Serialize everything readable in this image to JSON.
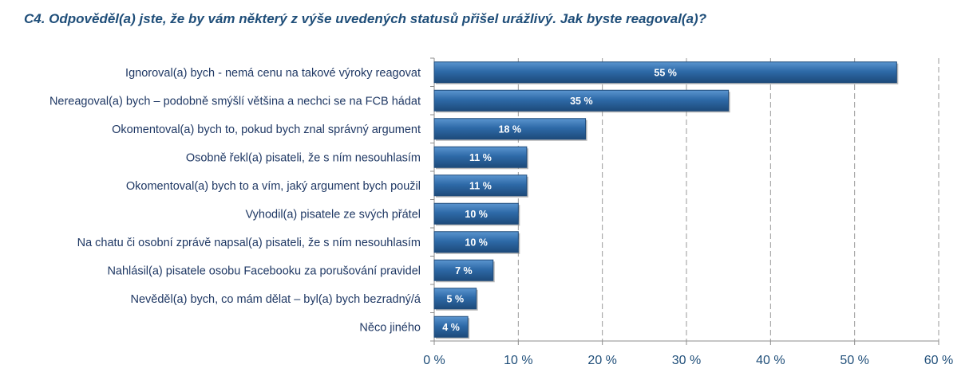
{
  "chart_data": {
    "type": "bar",
    "orientation": "horizontal",
    "title": "C4. Odpověděl(a) jste, že by vám některý z výše uvedených statusů přišel urážlivý. Jak byste reagoval(a)?",
    "categories": [
      "Ignoroval(a) bych - nemá cenu na takové výroky reagovat",
      "Nereagoval(a) bych – podobně smýšlí většina a nechci se na FCB hádat",
      "Okomentoval(a) bych to, pokud bych znal správný argument",
      "Osobně řekl(a) pisateli, že s ním nesouhlasím",
      "Okomentoval(a) bych to a vím, jaký argument bych použil",
      "Vyhodil(a) pisatele ze svých přátel",
      "Na chatu či osobní zprávě napsal(a) pisateli, že s ním nesouhlasím",
      "Nahlásil(a) pisatele osobu Facebooku za porušování pravidel",
      "Nevěděl(a) bych, co mám dělat – byl(a) bych bezradný/á",
      "Něco jiného"
    ],
    "values": [
      55,
      35,
      18,
      11,
      11,
      10,
      10,
      7,
      5,
      4
    ],
    "data_labels": [
      "55 %",
      "35 %",
      "18 %",
      "11 %",
      "11 %",
      "10 %",
      "10 %",
      "7 %",
      "5 %",
      "4 %"
    ],
    "xlim": [
      0,
      60
    ],
    "x_ticks": [
      0,
      10,
      20,
      30,
      40,
      50,
      60
    ],
    "x_tick_labels": [
      "0 %",
      "10 %",
      "20 %",
      "30 %",
      "40 %",
      "50 %",
      "60 %"
    ],
    "grid": "vertical dashed",
    "legend": "none",
    "colors": {
      "bar": "#2e6aa8",
      "bar_light": "#4f8cc9",
      "bar_dark": "#1d4a7a",
      "grid": "#9a9a9a",
      "text": "#1f3864",
      "title": "#1f4e79"
    }
  }
}
